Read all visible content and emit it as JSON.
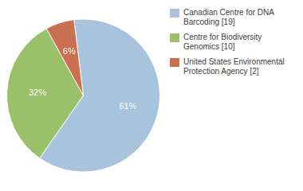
{
  "chart_data": {
    "type": "pie",
    "categories": [
      "Canadian Centre for DNA\nBarcoding [19]",
      "Centre for Biodiversity\nGenomics [10]",
      "United States Environmental\nProtection Agency [2]"
    ],
    "values": [
      61,
      32,
      6
    ],
    "value_labels": [
      "61%",
      "32%",
      "6%"
    ],
    "colors": [
      "#a8c4dc",
      "#9bc06a",
      "#c97050"
    ],
    "data_labels": true,
    "legend": "right"
  }
}
